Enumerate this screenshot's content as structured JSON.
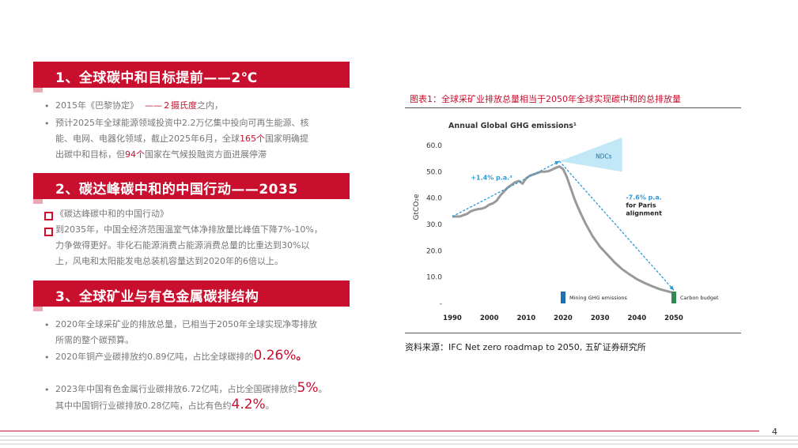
{
  "sections": [
    {
      "title": "1、全球碳中和目标提前——2℃"
    },
    {
      "title": "2、碳达峰碳中和的中国行动——2035"
    },
    {
      "title": "3、全球矿业与有色金属碳排结构"
    }
  ],
  "s1": {
    "b1_pre": "2015年《巴黎协定》",
    "b1_red": "——２摄氏度",
    "b1_post": "之内，",
    "b2_l1": "预计2025年全球能源领域投资中2.2万亿集中投向可再生能源、核",
    "b2_l2_pre": "能、电网、电器化领域，截止2025年6月，全球",
    "b2_l2_red": "165个",
    "b2_l2_post": "国家明确提",
    "b2_l3_pre": "出碳中和目标，但",
    "b2_l3_red": "94个",
    "b2_l3_post": "国家在气候投融资方面进展停滞"
  },
  "s2": {
    "b1": "《碳达峰碳中和的中国行动》",
    "b2_l1": "到2035年，中国全经济范围温室气体净排放量比峰值下降7%-10%，",
    "b2_l2": "力争做得更好。非化石能源消费占能源消费总量的比重达到30%以",
    "b2_l3": "上，风电和太阳能发电总装机容量达到2020年的6倍以上。"
  },
  "s3": {
    "b1_l1": "2020年全球采矿业的排放总量，已相当于2050年全球实现净零排放",
    "b1_l2": "所需的整个碳预算。",
    "b2_pre": "2020年铜产业碳排放约0.89亿吨，占比全球碳排的",
    "b2_red": "0.26%",
    "b2_post": "。",
    "b3_pre": "2023年中国有色金属行业碳排放6.72亿吨，占比全国碳排放约",
    "b3_red": "5%",
    "b3_post": "。",
    "b4_pre": "其中中国铜行业碳排放0.28亿吨，占比有色约",
    "b4_red": "4.2%",
    "b4_post": "。"
  },
  "chart_title": "图表1：全球采矿业排放总量相当于2050年全球实现碳中和的总排放量",
  "source": "资料来源：IFC Net zero roadmap  to 2050,  五矿证券研究所",
  "page_number": "4",
  "chart_data": {
    "type": "line",
    "title": "Annual Global GHG emissions¹",
    "ylabel": "GtCO₂e",
    "ylim": [
      0,
      60
    ],
    "y_ticks": [
      "60.0",
      "50.0",
      "40.0",
      "30.0",
      "20.0",
      "10.0",
      "-"
    ],
    "y_tick_values": [
      60,
      50,
      40,
      30,
      20,
      10,
      0
    ],
    "x_ticks": [
      "1990",
      "2000",
      "2010",
      "2020",
      "2030",
      "2040",
      "2050"
    ],
    "x_tick_values": [
      1990,
      2000,
      2010,
      2020,
      2030,
      2040,
      2050
    ],
    "xlim": [
      1990,
      2050
    ],
    "series": [
      {
        "values": [
          [
            1990,
            33
          ],
          [
            1991,
            33
          ],
          [
            1992,
            33
          ],
          [
            1993,
            33.5
          ],
          [
            1994,
            34
          ],
          [
            1995,
            35
          ],
          [
            1996,
            35.5
          ],
          [
            1997,
            35.8
          ],
          [
            1998,
            36
          ],
          [
            1999,
            36.5
          ],
          [
            2000,
            37.5
          ],
          [
            2001,
            38
          ],
          [
            2002,
            39
          ],
          [
            2003,
            41
          ],
          [
            2004,
            42.5
          ],
          [
            2005,
            44
          ],
          [
            2006,
            45
          ],
          [
            2007,
            46
          ],
          [
            2008,
            46.5
          ],
          [
            2009,
            45.5
          ],
          [
            2010,
            47.5
          ],
          [
            2011,
            48.5
          ],
          [
            2012,
            49
          ],
          [
            2013,
            49.5
          ],
          [
            2014,
            50
          ],
          [
            2015,
            50
          ],
          [
            2016,
            50.2
          ],
          [
            2017,
            50.8
          ],
          [
            2018,
            51.5
          ],
          [
            2019,
            52
          ],
          [
            2020,
            51
          ],
          [
            2021,
            48
          ],
          [
            2022,
            44
          ],
          [
            2023,
            40
          ],
          [
            2024,
            36.5
          ],
          [
            2025,
            33.5
          ],
          [
            2026,
            30.5
          ],
          [
            2027,
            28
          ],
          [
            2028,
            25.5
          ],
          [
            2029,
            23.5
          ],
          [
            2030,
            21.5
          ],
          [
            2032,
            18.5
          ],
          [
            2034,
            15.5
          ],
          [
            2036,
            13
          ],
          [
            2038,
            11
          ],
          [
            2040,
            9.2
          ],
          [
            2042,
            7.8
          ],
          [
            2044,
            6.6
          ],
          [
            2046,
            5.5
          ],
          [
            2048,
            4.7
          ],
          [
            2050,
            4
          ]
        ]
      }
    ],
    "annotations": {
      "growth_label": "+1.4% p.a.³",
      "growth_arrow": [
        [
          1990,
          33
        ],
        [
          2019,
          54
        ]
      ],
      "ndc_label": "NDCs",
      "decline_label_1": "-7.6% p.a.",
      "decline_label_2": "for Paris",
      "decline_label_3": "alignment",
      "decline_arrow": [
        [
          2019,
          54
        ],
        [
          2050,
          5
        ]
      ]
    },
    "bars": [
      {
        "label": "Mining GHG emissions",
        "x": 2020,
        "value": 4.5,
        "color": "#1f6fb2"
      },
      {
        "label": "Carbon budget",
        "x": 2050,
        "value": 4.5,
        "color": "#2e8b57"
      }
    ],
    "colors": {
      "line": "#999999",
      "arrow": "#2b9ad8"
    }
  }
}
